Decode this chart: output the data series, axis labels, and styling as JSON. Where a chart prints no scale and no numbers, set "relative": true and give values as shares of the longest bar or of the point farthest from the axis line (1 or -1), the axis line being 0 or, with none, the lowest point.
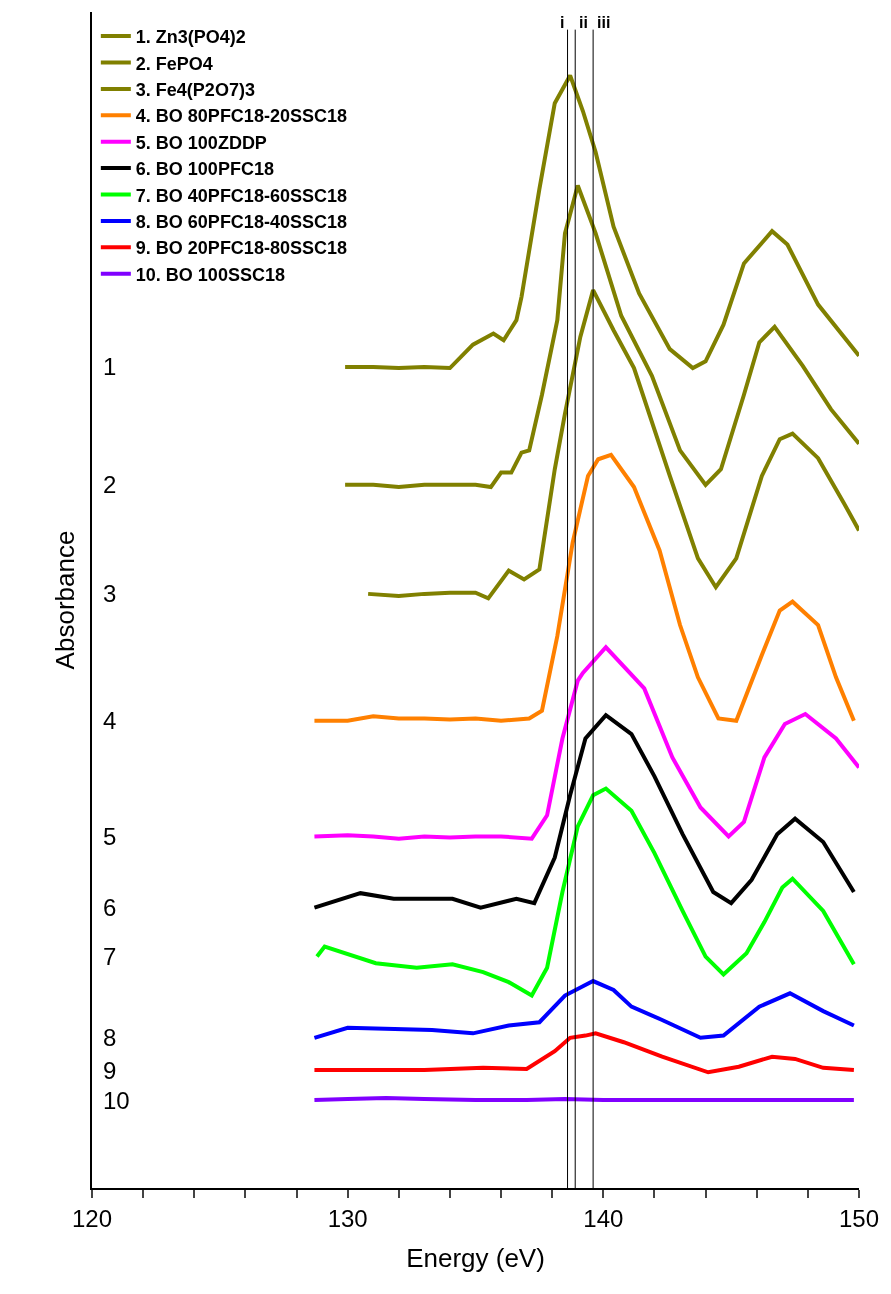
{
  "chart_data": {
    "type": "line",
    "relative": true,
    "xlabel": "Energy (eV)",
    "ylabel": "Absorbance",
    "xlim": [
      120,
      150
    ],
    "xticks": [
      120,
      {
        "value": 122,
        "label": null
      },
      {
        "value": 124,
        "label": null
      },
      {
        "value": 126,
        "label": null
      },
      {
        "value": 128,
        "label": null
      },
      130,
      {
        "value": 132,
        "label": null
      },
      {
        "value": 134,
        "label": null
      },
      {
        "value": 136,
        "label": null
      },
      {
        "value": 138,
        "label": null
      },
      140,
      {
        "value": 142,
        "label": null
      },
      {
        "value": 144,
        "label": null
      },
      {
        "value": 146,
        "label": null
      },
      {
        "value": 148,
        "label": null
      },
      150
    ],
    "grid": false,
    "legend": "top left",
    "marker": "none",
    "line_style": "solid",
    "ref_lines": [
      {
        "axis": "x",
        "value": 138.6,
        "label": "i",
        "color": "#000000"
      },
      {
        "axis": "x",
        "value": 138.9,
        "label": "ii",
        "color": "#000000"
      },
      {
        "axis": "x",
        "value": 139.6,
        "label": "iii",
        "color": "#000000"
      }
    ],
    "annotations": [
      "1",
      "2",
      "3",
      "4",
      "5",
      "6",
      "7",
      "8",
      "9",
      "10"
    ],
    "series": [
      {
        "name": "1. Zn3(PO4)2",
        "color": "#808000",
        "x": [
          129.9,
          131,
          132,
          133,
          134,
          134.9,
          135.7,
          136.1,
          136.6,
          136.8,
          137.5,
          138.1,
          138.7,
          139.2,
          139.7,
          140.4,
          141.4,
          142.6,
          143.5,
          144.0,
          144.7,
          145.5,
          146.6,
          147.2,
          148.4,
          150.0
        ],
        "values": [
          0.738,
          0.738,
          0.737,
          0.738,
          0.737,
          0.758,
          0.768,
          0.762,
          0.78,
          0.801,
          0.898,
          0.975,
          1,
          0.968,
          0.931,
          0.864,
          0.804,
          0.754,
          0.737,
          0.743,
          0.776,
          0.831,
          0.86,
          0.848,
          0.794,
          0.748
        ]
      },
      {
        "name": "2. FePO4",
        "color": "#808000",
        "x": [
          129.9,
          131,
          132,
          133,
          134,
          135,
          135.6,
          136.0,
          136.4,
          136.8,
          137.1,
          137.6,
          138.2,
          138.5,
          139.0,
          139.7,
          140.7,
          141.9,
          143.0,
          144.0,
          144.6,
          145.5,
          146.1,
          146.7,
          147.8,
          148.9,
          150.0
        ],
        "values": [
          0.632,
          0.632,
          0.63,
          0.632,
          0.632,
          0.632,
          0.63,
          0.643,
          0.643,
          0.661,
          0.663,
          0.713,
          0.78,
          0.858,
          0.901,
          0.858,
          0.784,
          0.73,
          0.663,
          0.632,
          0.646,
          0.713,
          0.76,
          0.774,
          0.739,
          0.7,
          0.669
        ]
      },
      {
        "name": "3. Fe4(P2O7)3",
        "color": "#808000",
        "x": [
          130.8,
          132,
          133,
          134,
          135,
          135.5,
          136.3,
          136.9,
          137.5,
          138.1,
          138.5,
          139.1,
          139.6,
          140.4,
          141.2,
          142.6,
          143.7,
          144.4,
          145.2,
          146.2,
          146.9,
          147.4,
          148.4,
          149.4,
          150.0
        ],
        "values": [
          0.534,
          0.532,
          0.534,
          0.535,
          0.535,
          0.53,
          0.555,
          0.547,
          0.556,
          0.646,
          0.696,
          0.765,
          0.807,
          0.771,
          0.737,
          0.64,
          0.566,
          0.54,
          0.566,
          0.64,
          0.673,
          0.678,
          0.656,
          0.616,
          0.591
        ]
      },
      {
        "name": "4. BO 80PFC18-20SSC18",
        "color": "#ff8000",
        "x": [
          128.7,
          130,
          131,
          132,
          133,
          134,
          135,
          136,
          137.1,
          137.6,
          138.2,
          138.8,
          139.4,
          139.8,
          140.3,
          141.2,
          142.2,
          143.0,
          143.7,
          144.5,
          145.2,
          146.2,
          146.9,
          147.4,
          148.4,
          149.1,
          149.8
        ],
        "values": [
          0.42,
          0.42,
          0.424,
          0.422,
          0.422,
          0.421,
          0.422,
          0.42,
          0.422,
          0.429,
          0.496,
          0.58,
          0.64,
          0.655,
          0.659,
          0.63,
          0.573,
          0.506,
          0.459,
          0.422,
          0.42,
          0.479,
          0.519,
          0.527,
          0.506,
          0.459,
          0.42
        ]
      },
      {
        "name": "5. BO 100ZDDP",
        "color": "#ff00ff",
        "x": [
          128.7,
          130,
          131,
          132,
          133,
          134,
          135,
          136,
          137.2,
          137.8,
          138.4,
          139.0,
          139.2,
          140.1,
          141.2,
          141.6,
          142.7,
          143.8,
          144.9,
          145.5,
          146.3,
          147.1,
          147.9,
          149.1,
          150.0
        ],
        "values": [
          0.316,
          0.317,
          0.316,
          0.314,
          0.316,
          0.315,
          0.316,
          0.316,
          0.314,
          0.335,
          0.404,
          0.456,
          0.463,
          0.486,
          0.459,
          0.449,
          0.387,
          0.342,
          0.316,
          0.329,
          0.387,
          0.417,
          0.426,
          0.404,
          0.378
        ]
      },
      {
        "name": "6. BO 100PFC18",
        "color": "#000000",
        "x": [
          128.7,
          130.5,
          131.8,
          134.1,
          135.2,
          136.6,
          137.3,
          138.1,
          138.7,
          139.3,
          140.1,
          141.1,
          142.0,
          143.1,
          144.3,
          145.0,
          145.8,
          146.8,
          147.5,
          148.6,
          149.8
        ],
        "values": [
          0.252,
          0.265,
          0.26,
          0.26,
          0.252,
          0.26,
          0.256,
          0.297,
          0.353,
          0.404,
          0.425,
          0.408,
          0.37,
          0.318,
          0.266,
          0.256,
          0.277,
          0.318,
          0.332,
          0.311,
          0.266
        ]
      },
      {
        "name": "7. BO 40PFC18-60SSC18",
        "color": "#00ff00",
        "x": [
          128.8,
          129.1,
          131.1,
          132.7,
          134.1,
          135.3,
          136.3,
          137.2,
          137.8,
          138.4,
          139.0,
          139.6,
          140.1,
          141.1,
          142.0,
          143.1,
          144.0,
          144.7,
          145.6,
          146.3,
          147.0,
          147.4,
          148.6,
          149.8
        ],
        "values": [
          0.208,
          0.217,
          0.202,
          0.198,
          0.201,
          0.194,
          0.185,
          0.173,
          0.198,
          0.266,
          0.325,
          0.353,
          0.359,
          0.339,
          0.301,
          0.249,
          0.208,
          0.192,
          0.211,
          0.239,
          0.27,
          0.278,
          0.249,
          0.201
        ]
      },
      {
        "name": "8. BO 60PFC18-40SSC18",
        "color": "#0000ff",
        "x": [
          128.7,
          130.0,
          133.3,
          134.9,
          136.3,
          137.5,
          138.5,
          139.6,
          140.4,
          141.1,
          142.3,
          143.8,
          144.7,
          146.1,
          147.3,
          148.6,
          149.8
        ],
        "values": [
          0.135,
          0.144,
          0.142,
          0.139,
          0.146,
          0.149,
          0.173,
          0.186,
          0.178,
          0.163,
          0.151,
          0.135,
          0.137,
          0.163,
          0.175,
          0.159,
          0.146
        ]
      },
      {
        "name": "9. BO 20PFC18-80SSC18",
        "color": "#ff0000",
        "x": [
          128.7,
          131,
          133,
          135.3,
          137.0,
          138.1,
          138.7,
          139.3,
          139.7,
          140.8,
          142.3,
          144.1,
          145.3,
          146.6,
          147.5,
          148.6,
          149.8
        ],
        "values": [
          0.106,
          0.106,
          0.106,
          0.108,
          0.107,
          0.123,
          0.135,
          0.137,
          0.139,
          0.131,
          0.118,
          0.104,
          0.109,
          0.118,
          0.116,
          0.108,
          0.106
        ]
      },
      {
        "name": "10. BO 100SSC18",
        "color": "#8000ff",
        "x": [
          128.7,
          130,
          131.5,
          133,
          135,
          137,
          138.5,
          140,
          142,
          144,
          146,
          148,
          149.8
        ],
        "values": [
          0.079,
          0.08,
          0.081,
          0.08,
          0.079,
          0.079,
          0.08,
          0.079,
          0.079,
          0.079,
          0.079,
          0.079,
          0.079
        ]
      }
    ]
  }
}
